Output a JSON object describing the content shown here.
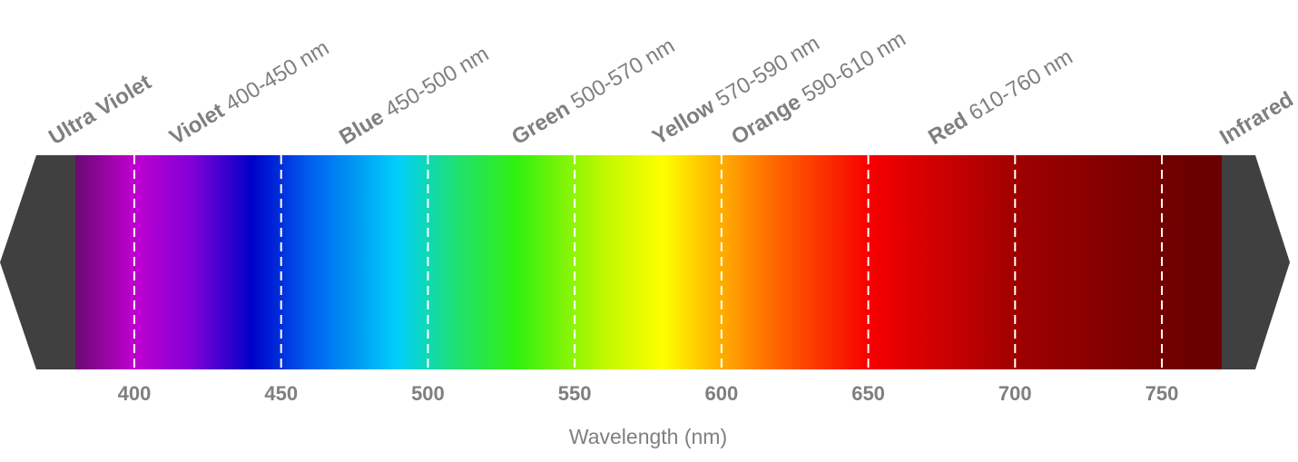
{
  "colors": {
    "end_caps": "#404040",
    "text": "#7f7f7f",
    "dividers": "#ffffff"
  },
  "spectrum": {
    "bands": [
      {
        "id": "ultra-violet",
        "name": "Ultra Violet",
        "range": ""
      },
      {
        "id": "violet",
        "name": "Violet",
        "range": "400-450 nm"
      },
      {
        "id": "blue",
        "name": "Blue",
        "range": "450-500 nm"
      },
      {
        "id": "green",
        "name": "Green",
        "range": "500-570 nm"
      },
      {
        "id": "yellow",
        "name": "Yellow",
        "range": "570-590 nm"
      },
      {
        "id": "orange",
        "name": "Orange",
        "range": "590-610 nm"
      },
      {
        "id": "red",
        "name": "Red",
        "range": "610-760 nm"
      },
      {
        "id": "infrared",
        "name": "Infrared",
        "range": ""
      }
    ],
    "color_stops": [
      {
        "nm": 380,
        "color": "#6a0a72"
      },
      {
        "nm": 400,
        "color": "#c000d0"
      },
      {
        "nm": 420,
        "color": "#8000d8"
      },
      {
        "nm": 440,
        "color": "#0000c8"
      },
      {
        "nm": 460,
        "color": "#0060f0"
      },
      {
        "nm": 490,
        "color": "#00d0f8"
      },
      {
        "nm": 510,
        "color": "#20e070"
      },
      {
        "nm": 530,
        "color": "#30f010"
      },
      {
        "nm": 560,
        "color": "#c0f800"
      },
      {
        "nm": 580,
        "color": "#ffff00"
      },
      {
        "nm": 595,
        "color": "#ffc000"
      },
      {
        "nm": 620,
        "color": "#ff6000"
      },
      {
        "nm": 650,
        "color": "#f80000"
      },
      {
        "nm": 700,
        "color": "#a00000"
      },
      {
        "nm": 760,
        "color": "#6a0000"
      }
    ],
    "dividers_nm": [
      400,
      450,
      500,
      550,
      600,
      650,
      700,
      750
    ]
  },
  "axis": {
    "title": "Wavelength (nm)",
    "ticks": [
      "400",
      "450",
      "500",
      "550",
      "600",
      "650",
      "700",
      "750"
    ]
  }
}
